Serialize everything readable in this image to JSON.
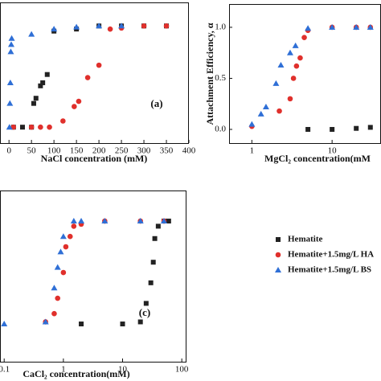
{
  "chart_data": [
    {
      "type": "scatter",
      "annotation": "(a)",
      "x_label": "NaCl concentration (mM)",
      "xlim": [
        -20,
        400
      ],
      "xticks": [
        0,
        50,
        100,
        150,
        200,
        250,
        300,
        350,
        400
      ],
      "ylim": [
        -0.134,
        1.228
      ],
      "log_x": false,
      "series": [
        {
          "marker": "square",
          "color": "#222222",
          "x": [
            10,
            30,
            50,
            55,
            60,
            70,
            75,
            85,
            100,
            150,
            200,
            250,
            300,
            350
          ],
          "values": [
            0.02,
            0.02,
            0.02,
            0.25,
            0.3,
            0.42,
            0.45,
            0.53,
            0.95,
            0.97,
            1.0,
            1.0,
            1.0,
            1.0
          ]
        },
        {
          "marker": "circle",
          "color": "#e0302c",
          "x": [
            10,
            50,
            70,
            90,
            120,
            145,
            155,
            175,
            200,
            225,
            250,
            300,
            350
          ],
          "values": [
            0.02,
            0.02,
            0.02,
            0.02,
            0.08,
            0.22,
            0.27,
            0.5,
            0.62,
            0.97,
            0.98,
            1.0,
            1.0
          ]
        },
        {
          "marker": "triangle",
          "color": "#2f6fd6",
          "x": [
            1,
            2,
            3,
            4,
            5,
            6,
            50,
            100,
            150,
            200,
            250
          ],
          "values": [
            0.02,
            0.25,
            0.45,
            0.75,
            0.82,
            0.88,
            0.92,
            0.97,
            0.99,
            1.0,
            1.0
          ]
        }
      ]
    },
    {
      "type": "scatter",
      "y_label": "Attachment Efficiency, α",
      "x_label": "MgCl₂ concentration(mM",
      "xlim": [
        0.52,
        40.7
      ],
      "xticks": [
        1,
        10
      ],
      "ylim": [
        -0.134,
        1.228
      ],
      "yticks": [
        {
          "value": 0,
          "label": "0.0"
        },
        {
          "value": 0.5,
          "label": "0.5"
        },
        {
          "value": 1,
          "label": "1.0"
        }
      ],
      "log_x": true,
      "series": [
        {
          "marker": "square",
          "color": "#222222",
          "x": [
            5,
            10,
            20,
            30
          ],
          "values": [
            0.0,
            0.0,
            0.01,
            0.02
          ]
        },
        {
          "marker": "circle",
          "color": "#e0302c",
          "x": [
            1,
            2.2,
            3,
            3.3,
            3.6,
            4,
            4.5,
            5,
            10,
            20,
            30
          ],
          "values": [
            0.03,
            0.18,
            0.3,
            0.5,
            0.62,
            0.7,
            0.9,
            0.97,
            1.0,
            1.0,
            1.0
          ]
        },
        {
          "marker": "triangle",
          "color": "#2f6fd6",
          "x": [
            1,
            1.3,
            1.5,
            2,
            2.3,
            3,
            3.5,
            5,
            10,
            20,
            30
          ],
          "values": [
            0.05,
            0.15,
            0.22,
            0.45,
            0.63,
            0.75,
            0.82,
            0.99,
            1.0,
            1.0,
            1.0
          ]
        }
      ]
    },
    {
      "type": "scatter",
      "annotation": "(c)",
      "x_label": "CaCl₂ concentration(mM)",
      "xlim": [
        0.085,
        120
      ],
      "xticks": [
        0.1,
        1,
        10,
        100
      ],
      "ylim": [
        -0.367,
        1.297
      ],
      "log_x": true,
      "legend": "right",
      "series": [
        {
          "name": "Hematite",
          "marker": "square",
          "color": "#222222",
          "x": [
            2,
            10,
            20,
            25,
            30,
            33,
            35,
            40,
            50,
            60
          ],
          "values": [
            0.0,
            0.0,
            0.02,
            0.2,
            0.4,
            0.6,
            0.83,
            0.95,
            1.0,
            1.0
          ]
        },
        {
          "name": "Hematite+1.5mg/L HA",
          "marker": "circle",
          "color": "#e0302c",
          "x": [
            0.5,
            0.7,
            0.8,
            1,
            1.1,
            1.3,
            1.5,
            2,
            5,
            20,
            50
          ],
          "values": [
            0.02,
            0.1,
            0.25,
            0.5,
            0.75,
            0.85,
            0.95,
            0.97,
            1.0,
            1.0,
            1.0
          ]
        },
        {
          "name": "Hematite+1.5mg/L BS",
          "marker": "triangle",
          "color": "#2f6fd6",
          "x": [
            0.1,
            0.5,
            0.7,
            0.8,
            0.9,
            1,
            1.5,
            2,
            5,
            20,
            50
          ],
          "values": [
            0.0,
            0.02,
            0.35,
            0.55,
            0.7,
            0.85,
            1.0,
            1.0,
            1.0,
            1.0,
            1.0
          ]
        }
      ]
    }
  ]
}
